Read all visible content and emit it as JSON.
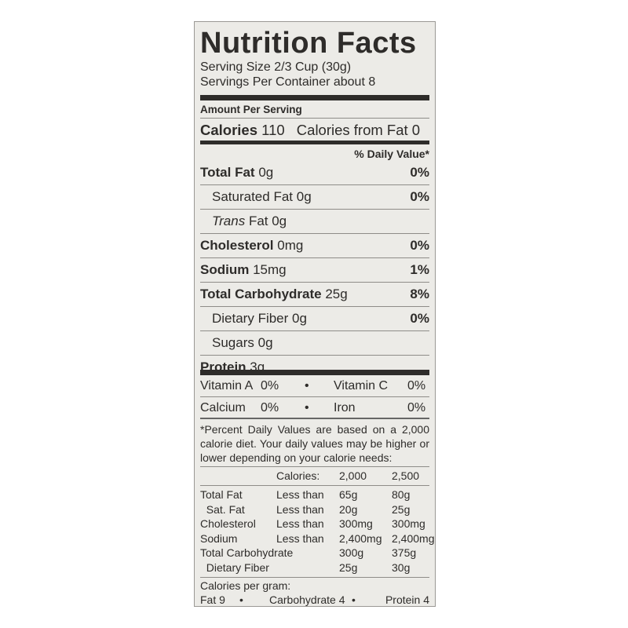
{
  "title": "Nutrition Facts",
  "serving_size": "Serving Size 2/3 Cup (30g)",
  "servings_per_container": "Servings Per Container about 8",
  "amount_per_serving": "Amount Per Serving",
  "calories_label": "Calories",
  "calories_value": "110",
  "calories_from_fat": "Calories from Fat 0",
  "daily_value_header": "% Daily Value*",
  "nutrients": [
    {
      "name": "Total Fat",
      "amount": "0g",
      "pct": "0%",
      "bold": true
    },
    {
      "name": "Saturated Fat",
      "amount": "0g",
      "pct": "0%",
      "bold": false
    },
    {
      "name": "Trans",
      "amount": "Fat 0g",
      "pct": "",
      "bold": false
    },
    {
      "name": "Cholesterol",
      "amount": "0mg",
      "pct": "0%",
      "bold": true
    },
    {
      "name": "Sodium",
      "amount": "15mg",
      "pct": "1%",
      "bold": true
    },
    {
      "name": "Total Carbohydrate",
      "amount": "25g",
      "pct": "8%",
      "bold": true
    },
    {
      "name": "Dietary Fiber",
      "amount": "0g",
      "pct": "0%",
      "bold": false
    },
    {
      "name": "Sugars",
      "amount": "0g",
      "pct": "",
      "bold": false
    },
    {
      "name": "Protein",
      "amount": "3g",
      "pct": "",
      "bold": true
    }
  ],
  "vitamins": [
    {
      "left": "Vitamin A",
      "left_pct": "0%",
      "right": "Vitamin C",
      "right_pct": "0%"
    },
    {
      "left": "Calcium",
      "left_pct": "0%",
      "right": "Iron",
      "right_pct": "0%"
    }
  ],
  "bullet": "•",
  "footnote": "*Percent Daily Values are based on a 2,000 calorie diet. Your daily values may be higher or lower depending on your calorie needs:",
  "dv_table": {
    "header": [
      "",
      "Calories:",
      "2,000",
      "2,500"
    ],
    "rows": [
      [
        "Total Fat",
        "Less than",
        "65g",
        "80g"
      ],
      [
        "  Sat. Fat",
        "Less than",
        "20g",
        "25g"
      ],
      [
        "Cholesterol",
        "Less than",
        "300mg",
        "300mg"
      ],
      [
        "Sodium",
        "Less than",
        "2,400mg",
        "2,400mg"
      ],
      [
        "Total Carbohydrate",
        "",
        "300g",
        "375g"
      ],
      [
        "  Dietary Fiber",
        "",
        "25g",
        "30g"
      ]
    ]
  },
  "calories_per_gram": "Calories per gram:",
  "cpg": [
    "Fat 9",
    "Carbohydrate 4",
    "Protein 4"
  ]
}
